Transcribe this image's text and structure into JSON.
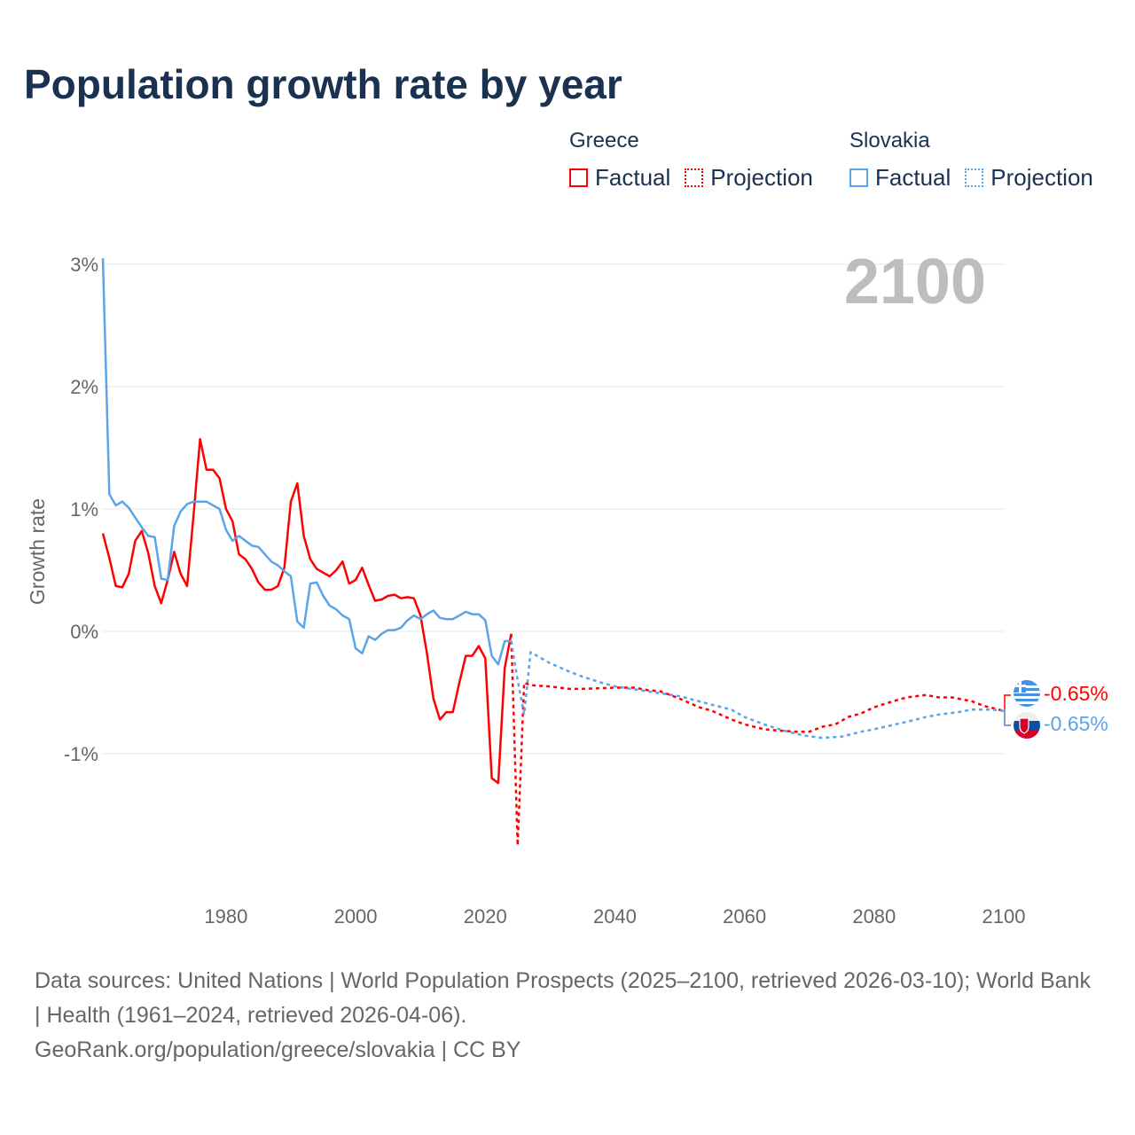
{
  "title": "Population growth rate by year",
  "legend": {
    "groups": [
      {
        "name": "Greece",
        "factual": "Factual",
        "projection": "Projection",
        "color": "#ff0000"
      },
      {
        "name": "Slovakia",
        "factual": "Factual",
        "projection": "Projection",
        "color": "#5ba4ea"
      }
    ]
  },
  "year_label": "2100",
  "footer": {
    "sources": "Data sources: United Nations | World Population Prospects (2025–2100, retrieved 2026-03-10); World Bank | Health (1961–2024, retrieved 2026-04-06).",
    "credit": "GeoRank.org/population/greece/slovakia | CC BY"
  },
  "chart_data": {
    "type": "line",
    "title": "Population growth rate by year",
    "xlabel": "",
    "ylabel": "Growth rate",
    "xlim": [
      1961,
      2100
    ],
    "ylim": [
      -2,
      3.1
    ],
    "x_ticks": [
      1980,
      2000,
      2020,
      2040,
      2060,
      2080,
      2100
    ],
    "x_tick_labels": [
      "1980",
      "2000",
      "2020",
      "2040",
      "2060",
      "2080",
      "2100"
    ],
    "y_ticks": [
      3,
      2,
      1,
      0,
      -1
    ],
    "y_tick_labels": [
      "3%",
      "2%",
      "1%",
      "0%",
      "-1%"
    ],
    "grid": true,
    "legend_position": "top-right",
    "end_labels": [
      "-0.65%",
      "-0.65%"
    ],
    "series": [
      {
        "name": "Greece Factual",
        "color": "#ff0000",
        "dashed": false,
        "x": [
          1961,
          1962,
          1963,
          1964,
          1965,
          1966,
          1967,
          1968,
          1969,
          1970,
          1971,
          1972,
          1973,
          1974,
          1975,
          1976,
          1977,
          1978,
          1979,
          1980,
          1981,
          1982,
          1983,
          1984,
          1985,
          1986,
          1987,
          1988,
          1989,
          1990,
          1991,
          1992,
          1993,
          1994,
          1995,
          1996,
          1997,
          1998,
          1999,
          2000,
          2001,
          2002,
          2003,
          2004,
          2005,
          2006,
          2007,
          2008,
          2009,
          2010,
          2011,
          2012,
          2013,
          2014,
          2015,
          2016,
          2017,
          2018,
          2019,
          2020,
          2021,
          2022,
          2023,
          2024
        ],
        "y": [
          0.8,
          0.6,
          0.37,
          0.36,
          0.47,
          0.74,
          0.82,
          0.64,
          0.37,
          0.23,
          0.42,
          0.65,
          0.47,
          0.37,
          0.95,
          1.57,
          1.32,
          1.32,
          1.25,
          1.0,
          0.9,
          0.63,
          0.59,
          0.51,
          0.4,
          0.34,
          0.34,
          0.37,
          0.52,
          1.06,
          1.21,
          0.78,
          0.59,
          0.51,
          0.48,
          0.45,
          0.5,
          0.57,
          0.39,
          0.42,
          0.52,
          0.38,
          0.25,
          0.26,
          0.29,
          0.3,
          0.27,
          0.28,
          0.27,
          0.13,
          -0.18,
          -0.55,
          -0.72,
          -0.66,
          -0.66,
          -0.42,
          -0.2,
          -0.2,
          -0.12,
          -0.22,
          -1.2,
          -1.24,
          -0.3,
          -0.02
        ]
      },
      {
        "name": "Greece Projection",
        "color": "#ff0000",
        "dashed": true,
        "x": [
          2024,
          2025,
          2026,
          2027,
          2030,
          2033,
          2035,
          2040,
          2043,
          2045,
          2047,
          2050,
          2053,
          2055,
          2058,
          2060,
          2063,
          2065,
          2068,
          2070,
          2072,
          2074,
          2076,
          2078,
          2080,
          2083,
          2085,
          2088,
          2090,
          2092,
          2095,
          2097,
          2100
        ],
        "y": [
          -0.02,
          -1.75,
          -0.42,
          -0.44,
          -0.45,
          -0.47,
          -0.47,
          -0.46,
          -0.46,
          -0.48,
          -0.49,
          -0.55,
          -0.62,
          -0.65,
          -0.72,
          -0.76,
          -0.8,
          -0.81,
          -0.82,
          -0.82,
          -0.78,
          -0.76,
          -0.7,
          -0.67,
          -0.62,
          -0.57,
          -0.54,
          -0.52,
          -0.54,
          -0.54,
          -0.57,
          -0.61,
          -0.65
        ]
      },
      {
        "name": "Slovakia Factual",
        "color": "#5ba4ea",
        "dashed": false,
        "x": [
          1961,
          1962,
          1963,
          1964,
          1965,
          1966,
          1967,
          1968,
          1969,
          1970,
          1971,
          1972,
          1973,
          1974,
          1975,
          1976,
          1977,
          1978,
          1979,
          1980,
          1981,
          1982,
          1983,
          1984,
          1985,
          1986,
          1987,
          1988,
          1989,
          1990,
          1991,
          1992,
          1993,
          1994,
          1995,
          1996,
          1997,
          1998,
          1999,
          2000,
          2001,
          2002,
          2003,
          2004,
          2005,
          2006,
          2007,
          2008,
          2009,
          2010,
          2011,
          2012,
          2013,
          2014,
          2015,
          2016,
          2017,
          2018,
          2019,
          2020,
          2021,
          2022,
          2023,
          2024
        ],
        "y": [
          3.05,
          1.12,
          1.03,
          1.06,
          1.01,
          0.93,
          0.85,
          0.78,
          0.77,
          0.43,
          0.42,
          0.86,
          0.98,
          1.04,
          1.06,
          1.06,
          1.06,
          1.03,
          1.0,
          0.83,
          0.74,
          0.78,
          0.74,
          0.7,
          0.69,
          0.63,
          0.57,
          0.54,
          0.49,
          0.45,
          0.08,
          0.03,
          0.39,
          0.4,
          0.29,
          0.21,
          0.18,
          0.13,
          0.1,
          -0.14,
          -0.18,
          -0.04,
          -0.07,
          -0.02,
          0.01,
          0.01,
          0.03,
          0.09,
          0.13,
          0.1,
          0.14,
          0.17,
          0.11,
          0.1,
          0.1,
          0.13,
          0.16,
          0.14,
          0.14,
          0.09,
          -0.2,
          -0.27,
          -0.08,
          -0.08
        ]
      },
      {
        "name": "Slovakia Projection",
        "color": "#5ba4ea",
        "dashed": true,
        "x": [
          2024,
          2025,
          2026,
          2027,
          2028,
          2030,
          2033,
          2035,
          2038,
          2040,
          2045,
          2050,
          2055,
          2058,
          2060,
          2063,
          2066,
          2069,
          2072,
          2075,
          2078,
          2080,
          2085,
          2088,
          2090,
          2093,
          2095,
          2098,
          2100
        ],
        "y": [
          -0.08,
          -0.4,
          -0.68,
          -0.17,
          -0.2,
          -0.26,
          -0.33,
          -0.37,
          -0.42,
          -0.45,
          -0.49,
          -0.53,
          -0.6,
          -0.64,
          -0.7,
          -0.76,
          -0.81,
          -0.85,
          -0.87,
          -0.86,
          -0.82,
          -0.8,
          -0.74,
          -0.7,
          -0.68,
          -0.66,
          -0.64,
          -0.64,
          -0.65
        ]
      }
    ]
  }
}
